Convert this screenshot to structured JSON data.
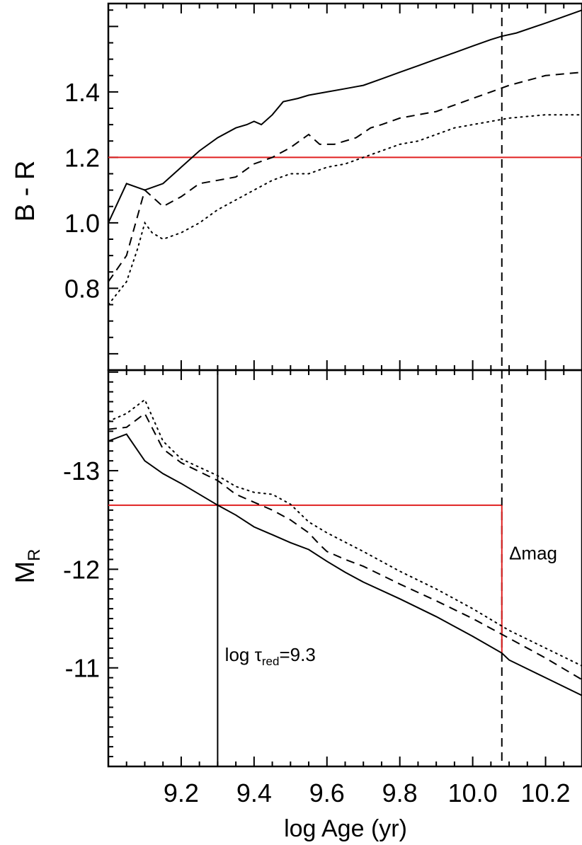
{
  "chart_data": [
    {
      "type": "line",
      "panel": "top",
      "ylabel": "B - R",
      "xlim": [
        9.0,
        10.3
      ],
      "ylim": [
        0.55,
        1.67
      ],
      "yticks": [
        {
          "v": 0.8,
          "label": "0.8"
        },
        {
          "v": 1.0,
          "label": "1.0"
        },
        {
          "v": 1.2,
          "label": "1.2"
        },
        {
          "v": 1.4,
          "label": "1.4"
        }
      ],
      "grid": false,
      "series": [
        {
          "style": "solid",
          "x": [
            9.0,
            9.05,
            9.1,
            9.15,
            9.2,
            9.25,
            9.3,
            9.35,
            9.38,
            9.4,
            9.42,
            9.45,
            9.48,
            9.52,
            9.55,
            9.6,
            9.65,
            9.7,
            9.75,
            9.8,
            9.85,
            9.9,
            9.95,
            10.0,
            10.05,
            10.08,
            10.12,
            10.2,
            10.3
          ],
          "y": [
            1.0,
            1.12,
            1.1,
            1.12,
            1.17,
            1.22,
            1.26,
            1.29,
            1.3,
            1.31,
            1.3,
            1.33,
            1.37,
            1.38,
            1.39,
            1.4,
            1.41,
            1.42,
            1.44,
            1.46,
            1.48,
            1.5,
            1.52,
            1.54,
            1.56,
            1.57,
            1.58,
            1.61,
            1.65
          ]
        },
        {
          "style": "dashed",
          "x": [
            9.0,
            9.05,
            9.1,
            9.15,
            9.2,
            9.25,
            9.3,
            9.35,
            9.4,
            9.45,
            9.5,
            9.55,
            9.58,
            9.62,
            9.68,
            9.72,
            9.75,
            9.8,
            9.85,
            9.9,
            9.95,
            10.0,
            10.05,
            10.1,
            10.2,
            10.3
          ],
          "y": [
            0.82,
            0.9,
            1.1,
            1.05,
            1.08,
            1.12,
            1.13,
            1.14,
            1.18,
            1.2,
            1.23,
            1.27,
            1.24,
            1.24,
            1.26,
            1.29,
            1.3,
            1.32,
            1.33,
            1.34,
            1.36,
            1.38,
            1.4,
            1.42,
            1.45,
            1.46
          ]
        },
        {
          "style": "dotted",
          "x": [
            9.0,
            9.05,
            9.08,
            9.1,
            9.12,
            9.15,
            9.2,
            9.25,
            9.3,
            9.35,
            9.4,
            9.45,
            9.5,
            9.55,
            9.6,
            9.65,
            9.7,
            9.75,
            9.8,
            9.85,
            9.9,
            9.95,
            10.0,
            10.05,
            10.1,
            10.2,
            10.3
          ],
          "y": [
            0.75,
            0.82,
            0.92,
            1.0,
            0.97,
            0.95,
            0.97,
            1.0,
            1.04,
            1.07,
            1.1,
            1.13,
            1.15,
            1.15,
            1.17,
            1.18,
            1.2,
            1.22,
            1.24,
            1.25,
            1.27,
            1.29,
            1.3,
            1.31,
            1.32,
            1.33,
            1.33
          ]
        }
      ],
      "hlines": [
        {
          "y": 1.2,
          "color": "#e02020",
          "x_from": 9.0,
          "x_to": 10.3
        }
      ],
      "vlines": [
        {
          "x": 10.08,
          "style": "dashed"
        }
      ]
    },
    {
      "type": "line",
      "panel": "bottom",
      "ylabel": "M",
      "ylabel_sub": "R",
      "xlabel": "log Age (yr)",
      "xlim": [
        9.0,
        10.3
      ],
      "ylim": [
        -14.02,
        -10.0
      ],
      "yreversed": true,
      "xticks": [
        {
          "v": 9.2,
          "label": "9.2"
        },
        {
          "v": 9.4,
          "label": "9.4"
        },
        {
          "v": 9.6,
          "label": "9.6"
        },
        {
          "v": 9.8,
          "label": "9.8"
        },
        {
          "v": 10.0,
          "label": "10.0"
        },
        {
          "v": 10.2,
          "label": "10.2"
        }
      ],
      "yticks": [
        {
          "v": -13,
          "label": "-13"
        },
        {
          "v": -12,
          "label": "-12"
        },
        {
          "v": -11,
          "label": "-11"
        }
      ],
      "grid": false,
      "series": [
        {
          "style": "solid",
          "x": [
            9.0,
            9.05,
            9.1,
            9.15,
            9.2,
            9.3,
            9.35,
            9.4,
            9.45,
            9.5,
            9.55,
            9.6,
            9.65,
            9.7,
            9.8,
            9.9,
            10.0,
            10.08,
            10.1,
            10.2,
            10.3
          ],
          "y": [
            -13.3,
            -13.37,
            -13.1,
            -12.97,
            -12.87,
            -12.65,
            -12.55,
            -12.43,
            -12.35,
            -12.27,
            -12.2,
            -12.08,
            -11.97,
            -11.87,
            -11.7,
            -11.52,
            -11.32,
            -11.15,
            -11.08,
            -10.9,
            -10.72
          ]
        },
        {
          "style": "dashed",
          "x": [
            9.0,
            9.05,
            9.1,
            9.15,
            9.2,
            9.3,
            9.35,
            9.4,
            9.45,
            9.5,
            9.55,
            9.58,
            9.6,
            9.65,
            9.7,
            9.8,
            9.9,
            10.0,
            10.1,
            10.2,
            10.3
          ],
          "y": [
            -13.42,
            -13.44,
            -13.58,
            -13.22,
            -13.08,
            -12.9,
            -12.76,
            -12.68,
            -12.6,
            -12.5,
            -12.37,
            -12.25,
            -12.18,
            -12.1,
            -12.03,
            -11.85,
            -11.68,
            -11.5,
            -11.3,
            -11.1,
            -10.88
          ]
        },
        {
          "style": "dotted",
          "x": [
            9.0,
            9.05,
            9.1,
            9.15,
            9.2,
            9.3,
            9.35,
            9.4,
            9.45,
            9.5,
            9.55,
            9.6,
            9.7,
            9.8,
            9.9,
            10.0,
            10.1,
            10.2,
            10.3
          ],
          "y": [
            -13.5,
            -13.58,
            -13.72,
            -13.3,
            -13.12,
            -12.95,
            -12.84,
            -12.78,
            -12.76,
            -12.66,
            -12.48,
            -12.37,
            -12.18,
            -11.98,
            -11.8,
            -11.6,
            -11.38,
            -11.2,
            -11.02
          ]
        }
      ],
      "hlines": [
        {
          "y": -12.65,
          "color": "#e02020",
          "x_from": 9.0,
          "x_to": 10.08
        }
      ],
      "vlines": [
        {
          "x": 9.3,
          "style": "solid",
          "color": "#000000"
        },
        {
          "x": 10.08,
          "style": "dashed"
        },
        {
          "x": 10.08,
          "style": "solid",
          "color": "#e02020",
          "y_from": -12.65,
          "y_to": -11.15
        }
      ],
      "annotations": [
        {
          "text_main": "log τ",
          "text_sub": "red",
          "text_tail": "=9.3",
          "x": 9.32,
          "y": -11.07
        },
        {
          "text": "Δmag",
          "x": 10.1,
          "y": -12.1
        }
      ]
    }
  ]
}
